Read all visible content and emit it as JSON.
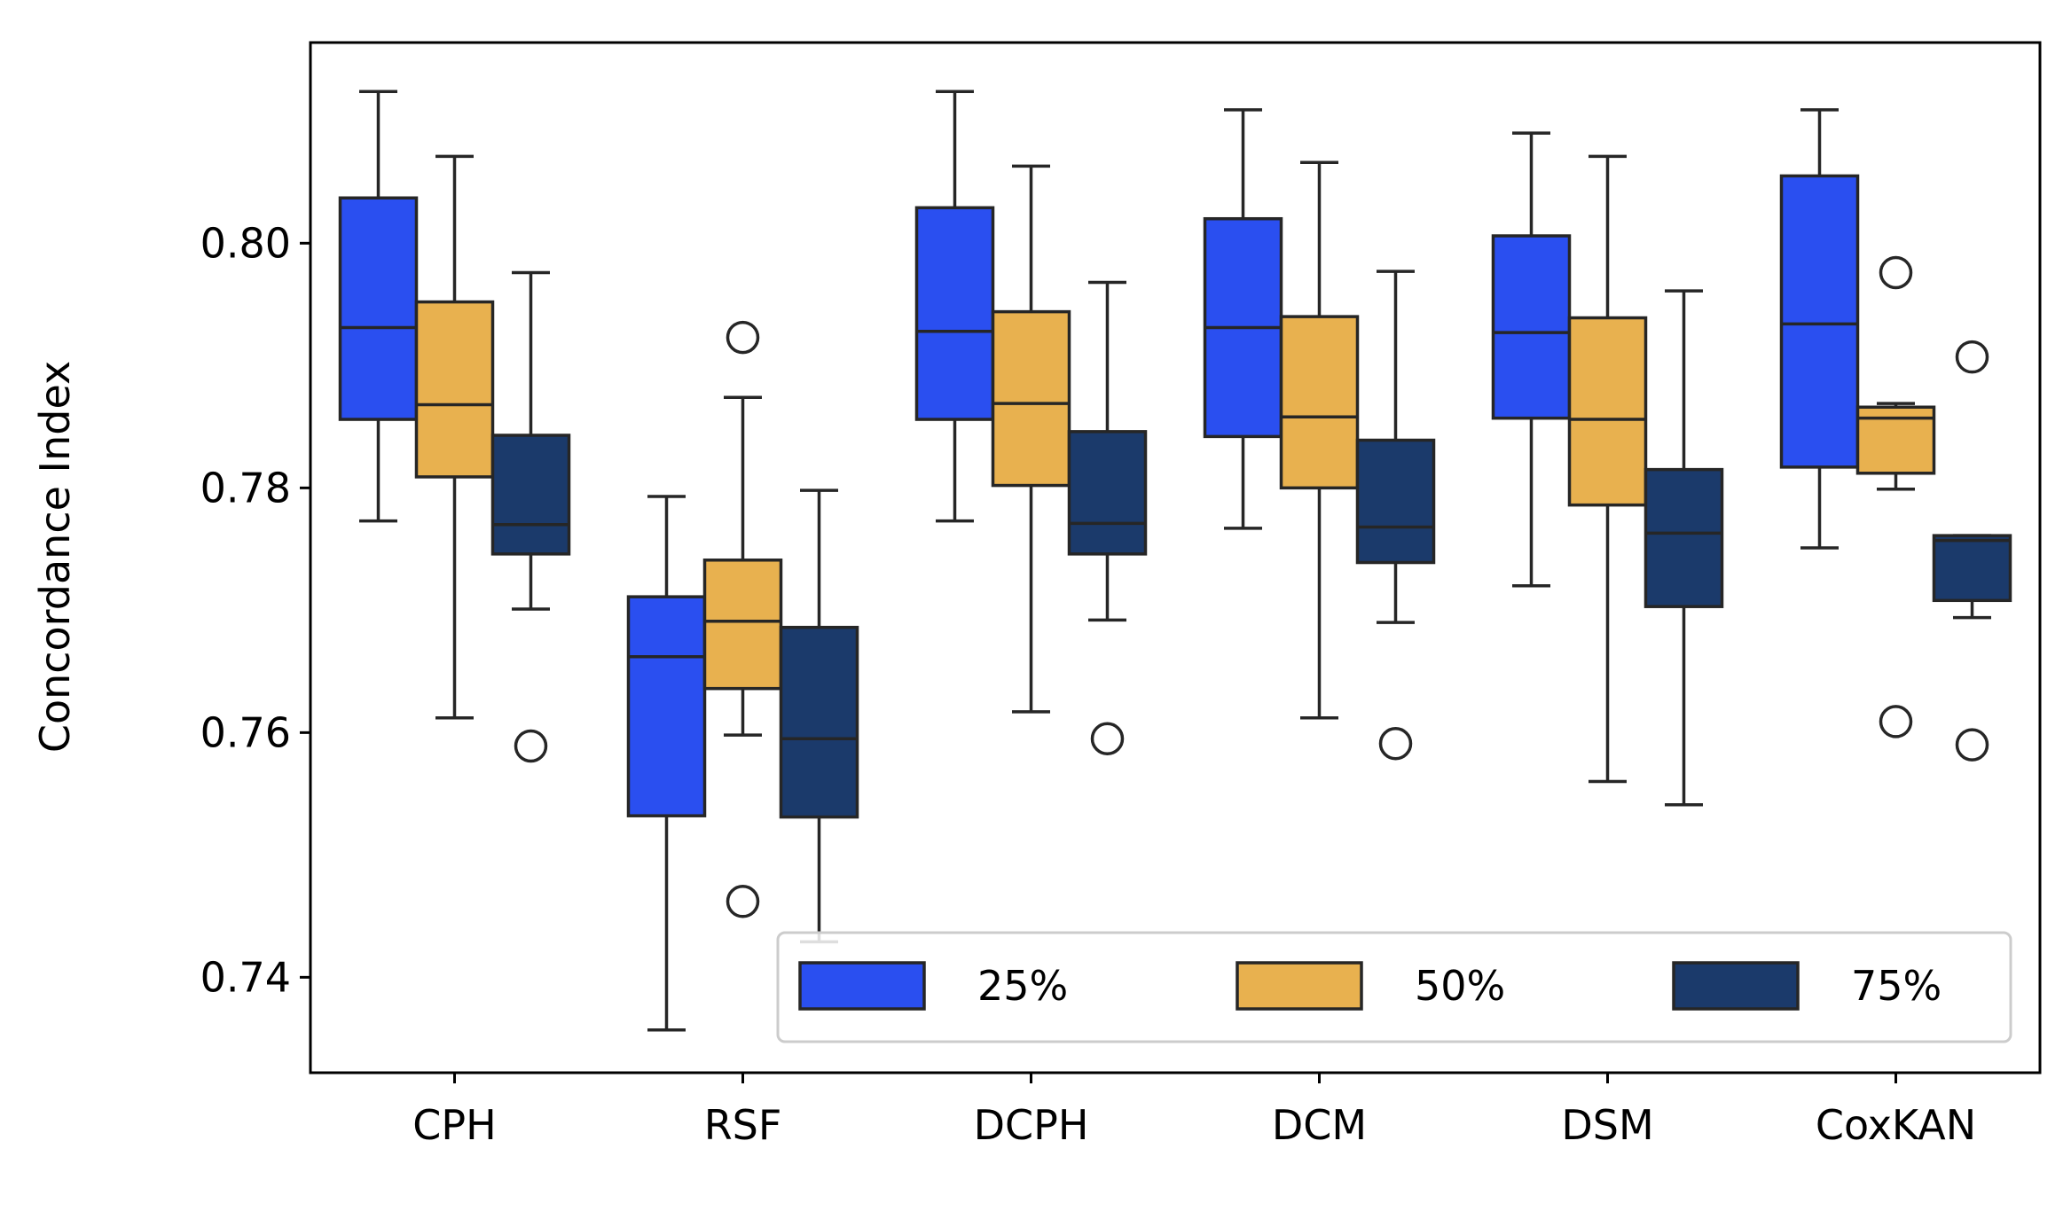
{
  "chart_data": {
    "type": "box",
    "ylabel": "Concordance Index",
    "xlabel": "",
    "categories": [
      "CPH",
      "RSF",
      "DCPH",
      "DCM",
      "DSM",
      "CoxKAN"
    ],
    "ylim": [
      0.7322,
      0.8164
    ],
    "yticks": [
      0.74,
      0.76,
      0.78,
      0.8
    ],
    "ytick_labels": [
      "0.74",
      "0.76",
      "0.78",
      "0.80"
    ],
    "grid": false,
    "legend": {
      "placement": "lower-right",
      "columns": 3
    },
    "series": [
      {
        "name": "25%",
        "color": "#2a4ff0",
        "boxes": [
          {
            "whislo": 0.7773,
            "q1": 0.7856,
            "med": 0.7931,
            "q3": 0.8037,
            "whishi": 0.8124,
            "fliers": []
          },
          {
            "whislo": 0.7357,
            "q1": 0.7532,
            "med": 0.7662,
            "q3": 0.7711,
            "whishi": 0.7793,
            "fliers": []
          },
          {
            "whislo": 0.7773,
            "q1": 0.7856,
            "med": 0.7928,
            "q3": 0.8029,
            "whishi": 0.8124,
            "fliers": []
          },
          {
            "whislo": 0.7767,
            "q1": 0.7842,
            "med": 0.7931,
            "q3": 0.802,
            "whishi": 0.8109,
            "fliers": []
          },
          {
            "whislo": 0.772,
            "q1": 0.7857,
            "med": 0.7927,
            "q3": 0.8006,
            "whishi": 0.809,
            "fliers": []
          },
          {
            "whislo": 0.7751,
            "q1": 0.7817,
            "med": 0.7934,
            "q3": 0.8055,
            "whishi": 0.8109,
            "fliers": []
          }
        ]
      },
      {
        "name": "50%",
        "color": "#e8b14f",
        "boxes": [
          {
            "whislo": 0.7612,
            "q1": 0.7809,
            "med": 0.7868,
            "q3": 0.7952,
            "whishi": 0.8071,
            "fliers": []
          },
          {
            "whislo": 0.7598,
            "q1": 0.7636,
            "med": 0.7691,
            "q3": 0.7741,
            "whishi": 0.7874,
            "fliers": [
              0.7923,
              0.7462
            ]
          },
          {
            "whislo": 0.7617,
            "q1": 0.7802,
            "med": 0.7869,
            "q3": 0.7944,
            "whishi": 0.8063,
            "fliers": []
          },
          {
            "whislo": 0.7612,
            "q1": 0.78,
            "med": 0.7858,
            "q3": 0.794,
            "whishi": 0.8066,
            "fliers": []
          },
          {
            "whislo": 0.756,
            "q1": 0.7786,
            "med": 0.7856,
            "q3": 0.7939,
            "whishi": 0.8071,
            "fliers": []
          },
          {
            "whislo": 0.7799,
            "q1": 0.7812,
            "med": 0.7857,
            "q3": 0.7866,
            "whishi": 0.7869,
            "fliers": [
              0.7976,
              0.7609
            ]
          }
        ]
      },
      {
        "name": "75%",
        "color": "#1b3a6b",
        "boxes": [
          {
            "whislo": 0.7701,
            "q1": 0.7746,
            "med": 0.777,
            "q3": 0.7843,
            "whishi": 0.7976,
            "fliers": [
              0.7589
            ]
          },
          {
            "whislo": 0.7429,
            "q1": 0.7531,
            "med": 0.7595,
            "q3": 0.7686,
            "whishi": 0.7798,
            "fliers": []
          },
          {
            "whislo": 0.7692,
            "q1": 0.7746,
            "med": 0.7771,
            "q3": 0.7846,
            "whishi": 0.7968,
            "fliers": [
              0.7595
            ]
          },
          {
            "whislo": 0.769,
            "q1": 0.7739,
            "med": 0.7768,
            "q3": 0.7839,
            "whishi": 0.7977,
            "fliers": [
              0.7591
            ]
          },
          {
            "whislo": 0.7541,
            "q1": 0.7703,
            "med": 0.7763,
            "q3": 0.7815,
            "whishi": 0.7961,
            "fliers": []
          },
          {
            "whislo": 0.7694,
            "q1": 0.7708,
            "med": 0.7757,
            "q3": 0.7761,
            "whishi": 0.7761,
            "fliers": [
              0.7907,
              0.759
            ]
          }
        ]
      }
    ]
  }
}
